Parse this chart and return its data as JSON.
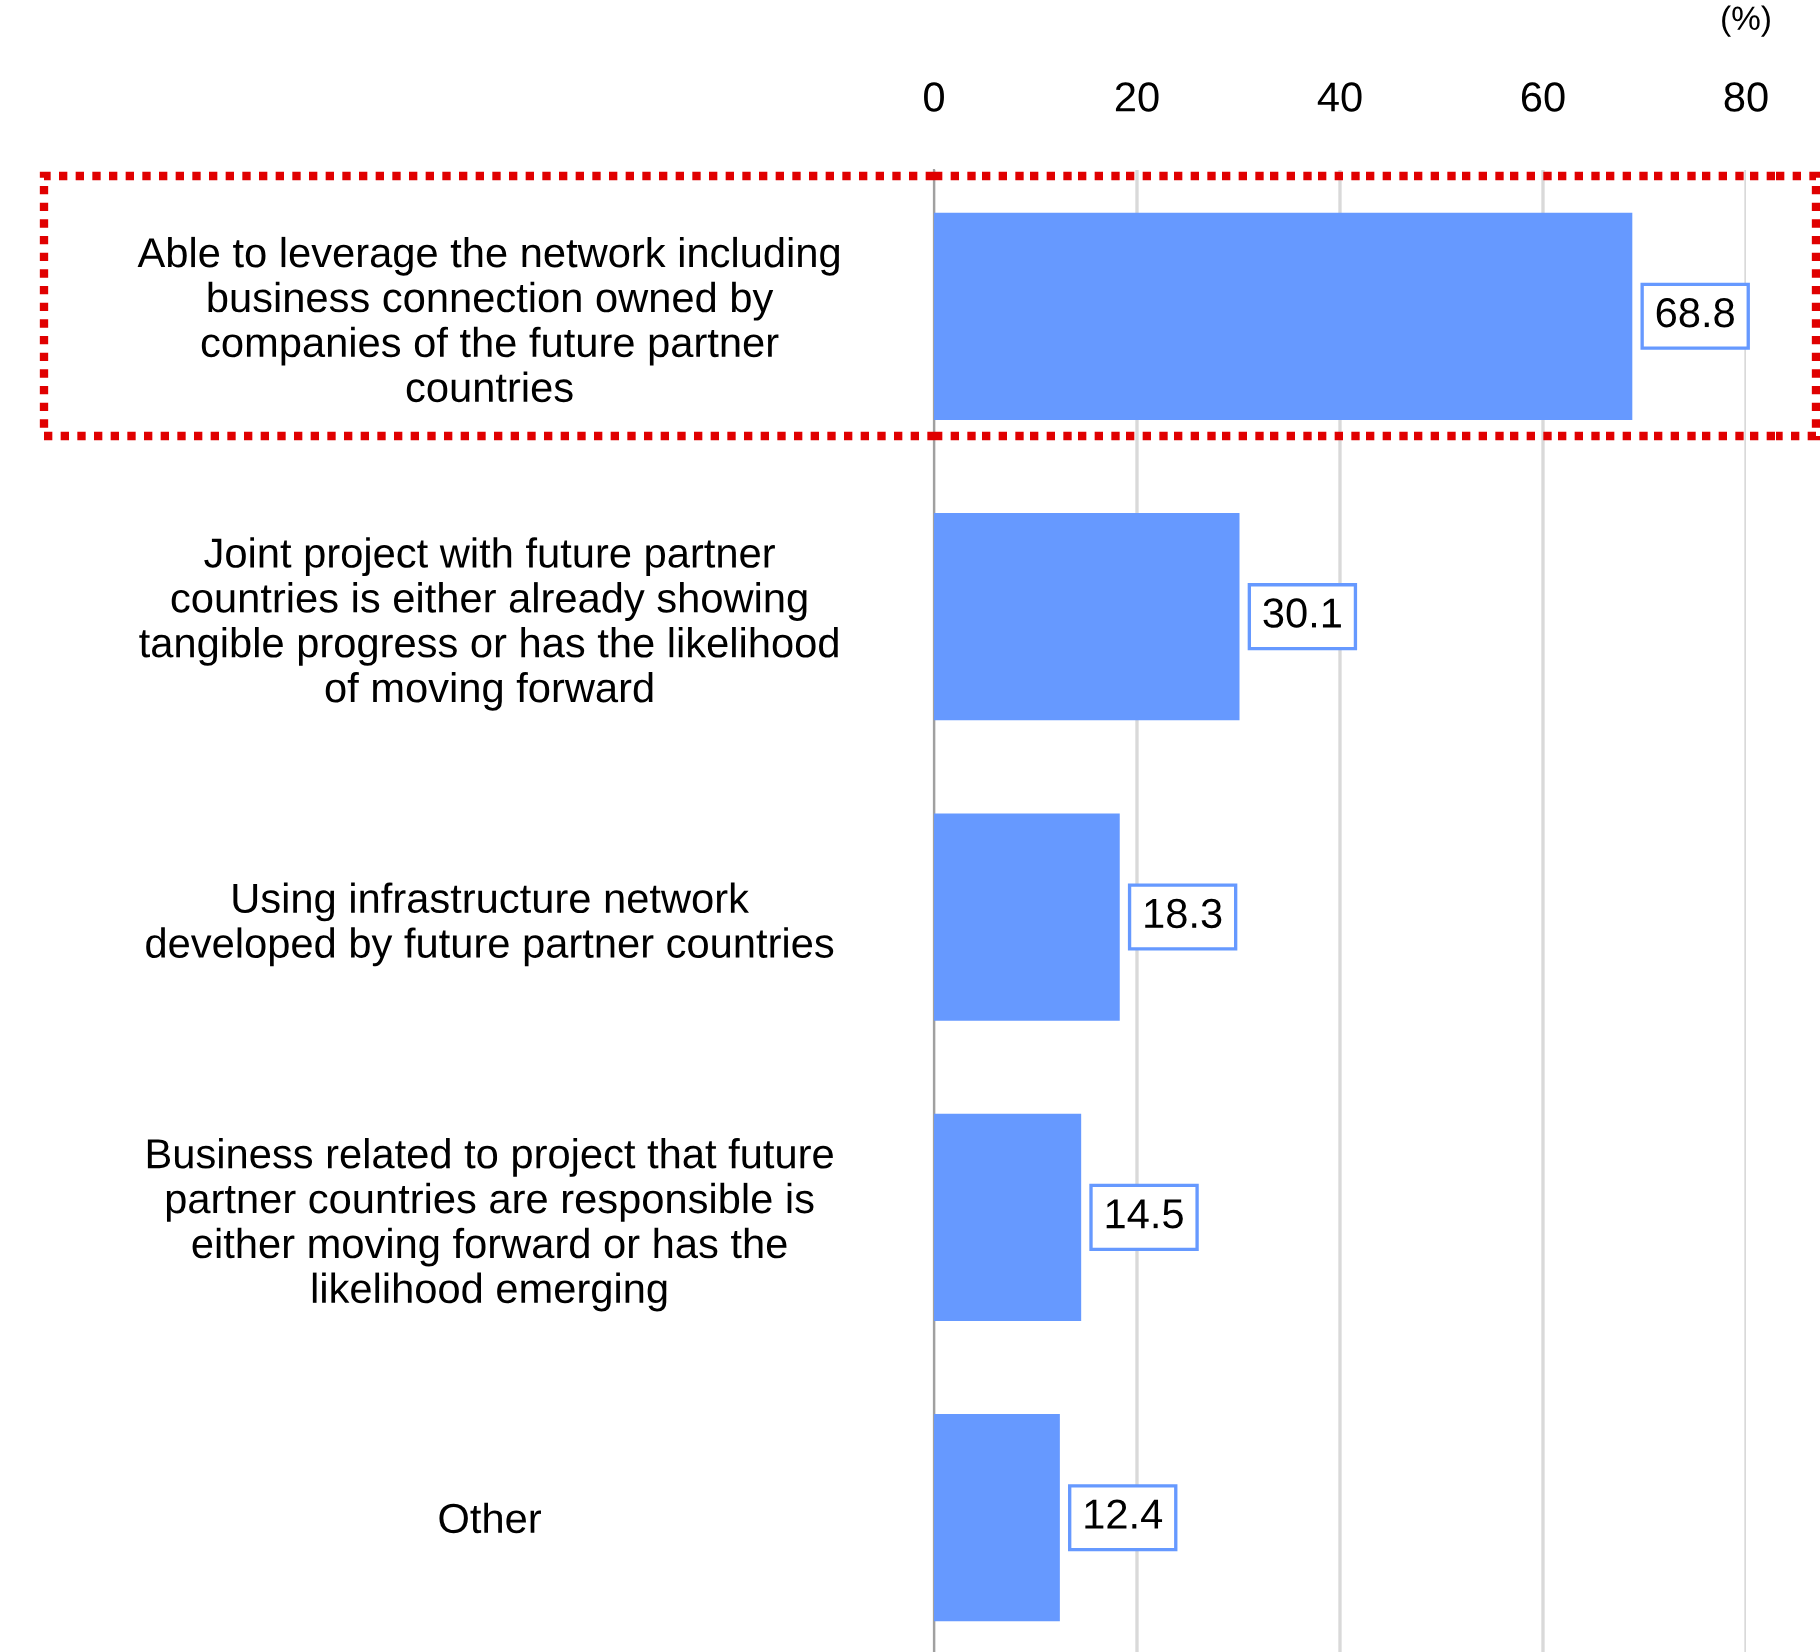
{
  "chart_data": {
    "type": "bar",
    "orientation": "horizontal",
    "xlabel": "(%)",
    "categories": [
      "Able to leverage the network including\nbusiness connection owned by\ncompanies of the future partner\ncountries",
      "Joint project with future partner\ncountries is either already showing\ntangible progress or has the likelihood\nof moving forward",
      "Using infrastructure network\ndeveloped by future partner countries",
      "Business related to project that future\npartner countries are responsible is\neither moving forward or has the\nlikelihood emerging",
      "Other"
    ],
    "values": [
      68.8,
      30.1,
      18.3,
      14.5,
      12.4
    ],
    "color": "#6699ff",
    "xlim": [
      0,
      80
    ],
    "xticks": [
      0,
      20,
      40,
      60,
      80
    ],
    "grid": "x",
    "data_labels": true
  }
}
